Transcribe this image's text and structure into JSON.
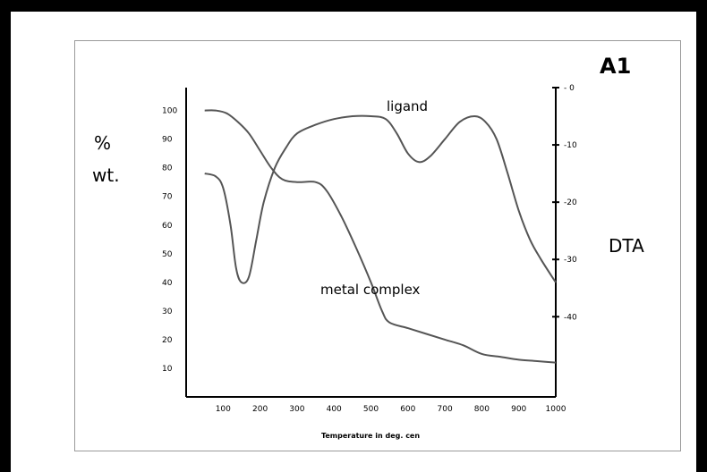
{
  "panel_label": "A1",
  "left_axis_label": {
    "line1": "%",
    "line2": "wt."
  },
  "right_axis_label": "DTA",
  "chart_data": {
    "type": "line",
    "xlabel": "Temperature in deg. cen",
    "x_ticks": [
      "100",
      "200",
      "300",
      "400",
      "500",
      "600",
      "700",
      "800",
      "900",
      "1000"
    ],
    "xlim": [
      0,
      1000
    ],
    "ylabel_left": "% wt.",
    "y_left_ticks": [
      "100",
      "90",
      "80",
      "70",
      "60",
      "50",
      "40",
      "30",
      "20",
      "10"
    ],
    "ylim_left": [
      0,
      108
    ],
    "ylabel_right": "DTA",
    "y_right_ticks": [
      "- 0",
      "-10",
      "-20",
      "-30",
      "-40"
    ],
    "ylim_right": [
      -54,
      0
    ],
    "grid": false,
    "annotations": [
      {
        "text": "ligand",
        "x": 580,
        "y": 103
      },
      {
        "text": "metal complex",
        "x": 540,
        "y": 38
      }
    ],
    "series": [
      {
        "name": "ligand",
        "values": [
          [
            50,
            78
          ],
          [
            80,
            77
          ],
          [
            100,
            73
          ],
          [
            120,
            60
          ],
          [
            135,
            45
          ],
          [
            150,
            40
          ],
          [
            170,
            42
          ],
          [
            190,
            55
          ],
          [
            210,
            68
          ],
          [
            240,
            80
          ],
          [
            270,
            87
          ],
          [
            300,
            92
          ],
          [
            350,
            95
          ],
          [
            400,
            97
          ],
          [
            450,
            98
          ],
          [
            500,
            98
          ],
          [
            540,
            97
          ],
          [
            570,
            92
          ],
          [
            600,
            85
          ],
          [
            630,
            82
          ],
          [
            660,
            84
          ],
          [
            700,
            90
          ],
          [
            740,
            96
          ],
          [
            780,
            98
          ],
          [
            810,
            96
          ],
          [
            840,
            90
          ],
          [
            870,
            78
          ],
          [
            900,
            65
          ],
          [
            930,
            55
          ],
          [
            960,
            48
          ],
          [
            1000,
            40
          ]
        ]
      },
      {
        "name": "metal complex",
        "values": [
          [
            50,
            100
          ],
          [
            80,
            100
          ],
          [
            110,
            99
          ],
          [
            140,
            96
          ],
          [
            170,
            92
          ],
          [
            200,
            86
          ],
          [
            230,
            80
          ],
          [
            260,
            76
          ],
          [
            300,
            75
          ],
          [
            350,
            75
          ],
          [
            380,
            72
          ],
          [
            420,
            63
          ],
          [
            460,
            52
          ],
          [
            500,
            40
          ],
          [
            530,
            30
          ],
          [
            550,
            26
          ],
          [
            600,
            24
          ],
          [
            650,
            22
          ],
          [
            700,
            20
          ],
          [
            750,
            18
          ],
          [
            800,
            15
          ],
          [
            850,
            14
          ],
          [
            900,
            13
          ],
          [
            950,
            12.5
          ],
          [
            1000,
            12
          ]
        ]
      }
    ]
  }
}
